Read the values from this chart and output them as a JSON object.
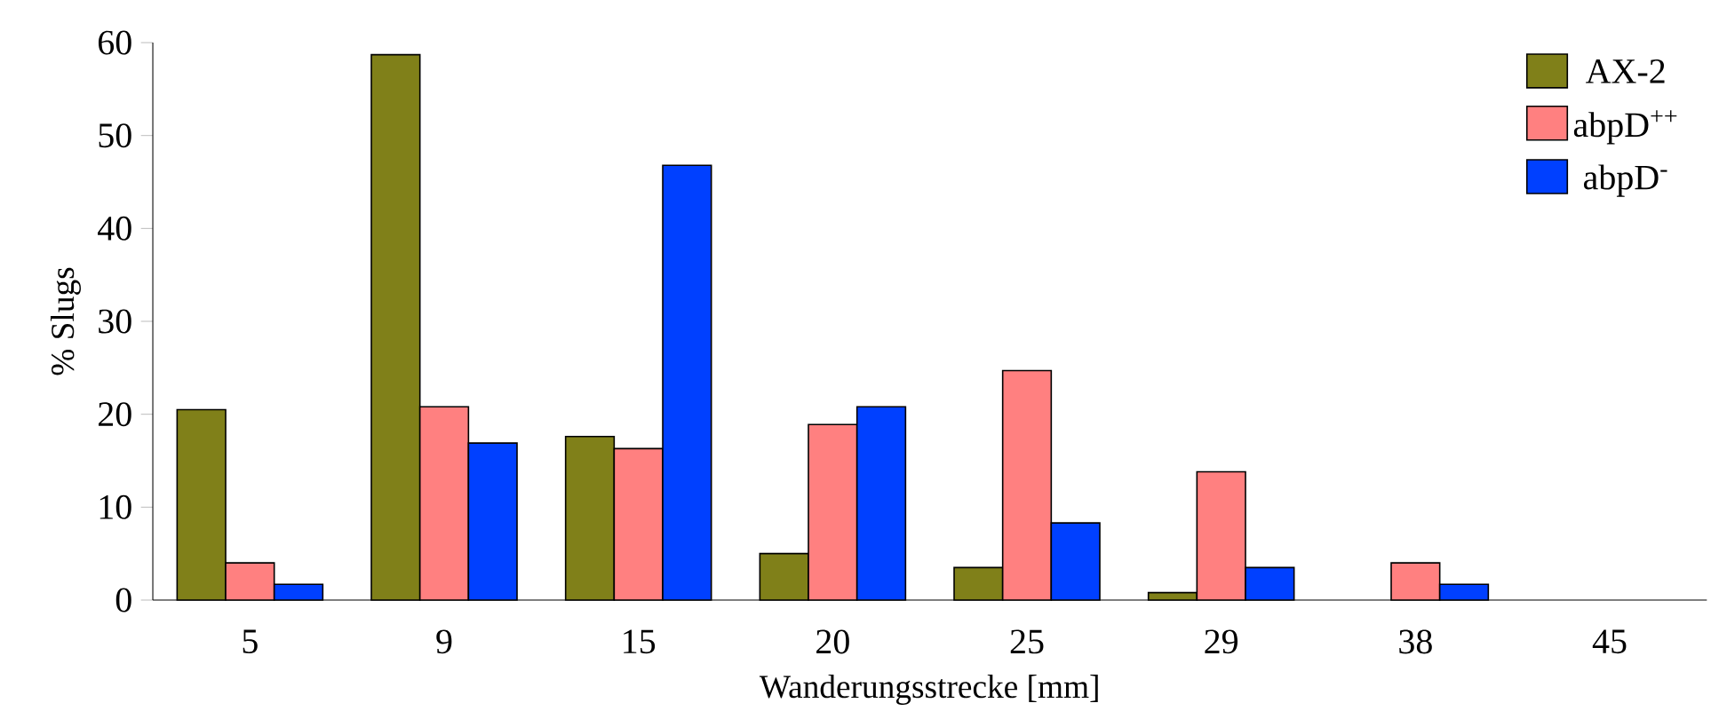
{
  "chart_data": {
    "type": "bar",
    "xlabel": "Wanderungsstrecke [mm]",
    "ylabel": "% Slugs",
    "categories": [
      "5",
      "9",
      "15",
      "20",
      "25",
      "29",
      "38",
      "45"
    ],
    "series": [
      {
        "name": "AX-2",
        "color": "#808019",
        "values": [
          20.5,
          58.7,
          17.6,
          5.0,
          3.5,
          0.8,
          null,
          null
        ]
      },
      {
        "name": "abpD$^{++}$",
        "color": "#ff8080",
        "values": [
          4.0,
          20.8,
          16.3,
          18.9,
          24.7,
          13.8,
          4.0,
          null
        ]
      },
      {
        "name": "abpD$^{-}$",
        "color": "#0040ff",
        "values": [
          1.7,
          16.9,
          46.8,
          20.8,
          8.3,
          3.5,
          1.7,
          null
        ]
      }
    ],
    "ylim": [
      0,
      60
    ],
    "yticks": [
      0,
      10,
      20,
      30,
      40,
      50,
      60
    ],
    "legend": "top right",
    "grid": false
  }
}
